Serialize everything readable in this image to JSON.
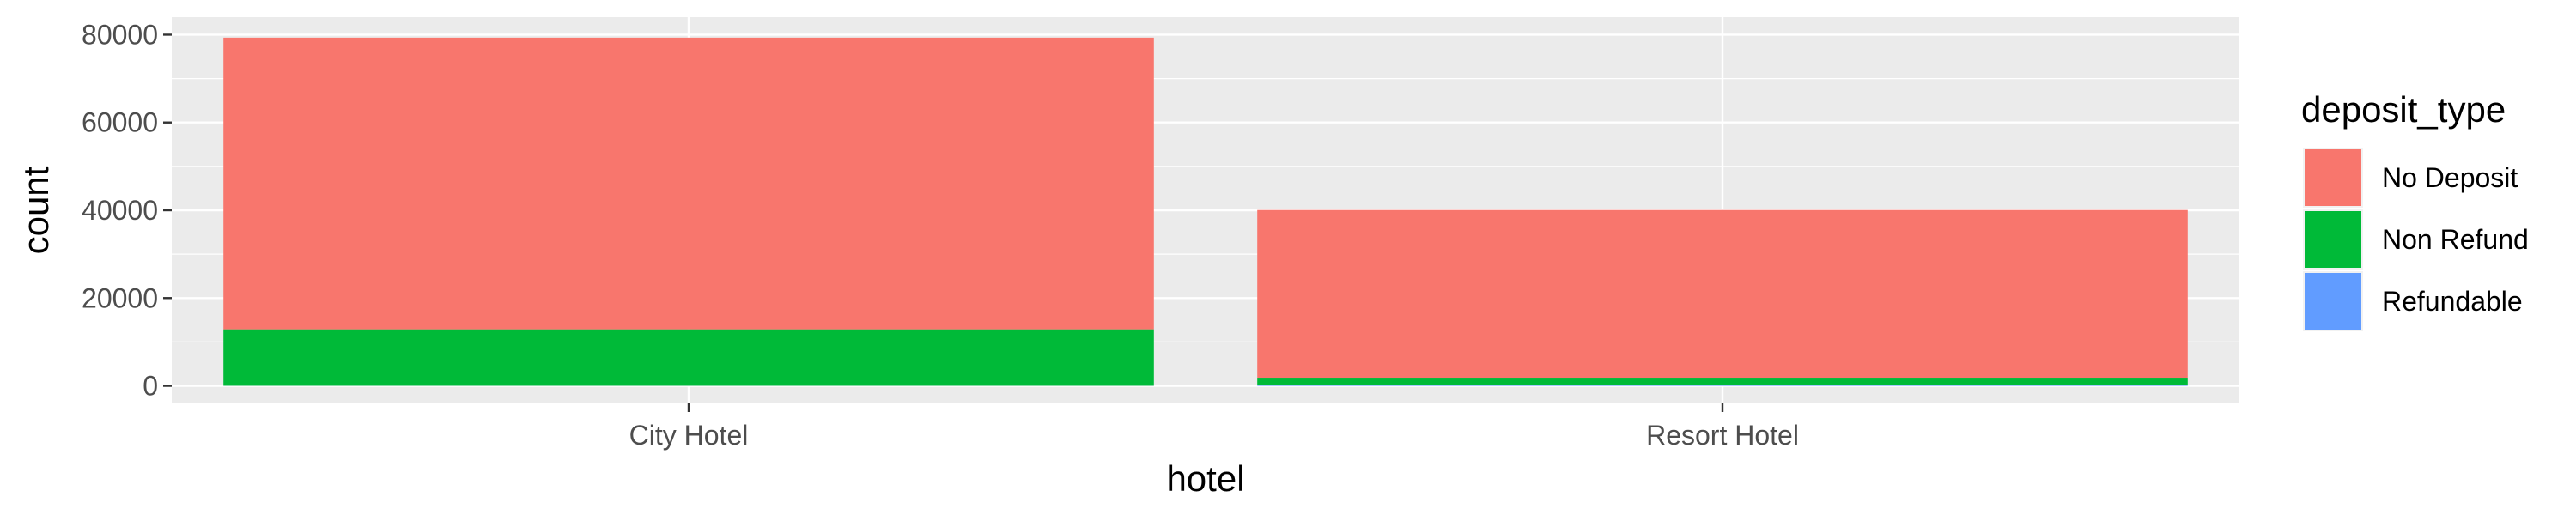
{
  "chart_data": {
    "type": "bar",
    "stacked": true,
    "categories": [
      "City Hotel",
      "Resort Hotel"
    ],
    "series": [
      {
        "name": "No Deposit",
        "color": "#F8766D",
        "values": [
          66442,
          38199
        ]
      },
      {
        "name": "Non Refund",
        "color": "#00BA38",
        "values": [
          12868,
          1719
        ]
      },
      {
        "name": "Refundable",
        "color": "#619CFF",
        "values": [
          20,
          142
        ]
      }
    ],
    "xlabel": "hotel",
    "ylabel": "count",
    "ylim": [
      -4000,
      84000
    ],
    "yticks": [
      0,
      20000,
      40000,
      60000,
      80000
    ],
    "ytick_labels": [
      "0",
      "20000",
      "40000",
      "60000",
      "80000"
    ],
    "legend_title": "deposit_type",
    "legend_position": "right",
    "grid": true,
    "panel_background": "#EBEBEB"
  }
}
